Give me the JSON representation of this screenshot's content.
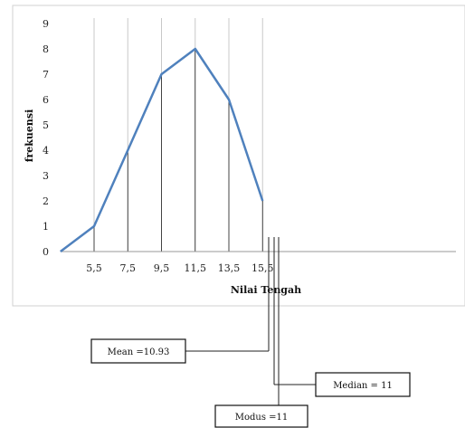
{
  "chart_data": {
    "type": "line",
    "x_ticks": [
      "5,5",
      "7,5",
      "9,5",
      "11,5",
      "13,5",
      "15,5"
    ],
    "points": [
      {
        "x": 3.5,
        "y": 0
      },
      {
        "x": 5.5,
        "y": 1
      },
      {
        "x": 7.5,
        "y": 4
      },
      {
        "x": 9.5,
        "y": 7
      },
      {
        "x": 11.5,
        "y": 8
      },
      {
        "x": 13.5,
        "y": 6
      },
      {
        "x": 15.5,
        "y": 2
      }
    ],
    "xlabel": "Nilai Tengah",
    "ylabel": "frekuensi",
    "ylim": [
      0,
      9
    ],
    "yticks": [
      0,
      1,
      2,
      3,
      4,
      5,
      6,
      7,
      8,
      9
    ],
    "grid": "vertical",
    "line_color": "#4f81bd",
    "annotations": [
      {
        "label": "Mean =10.93",
        "value": 10.93
      },
      {
        "label": "Median = 11",
        "value": 11
      },
      {
        "label": "Modus =11",
        "value": 11
      }
    ]
  }
}
